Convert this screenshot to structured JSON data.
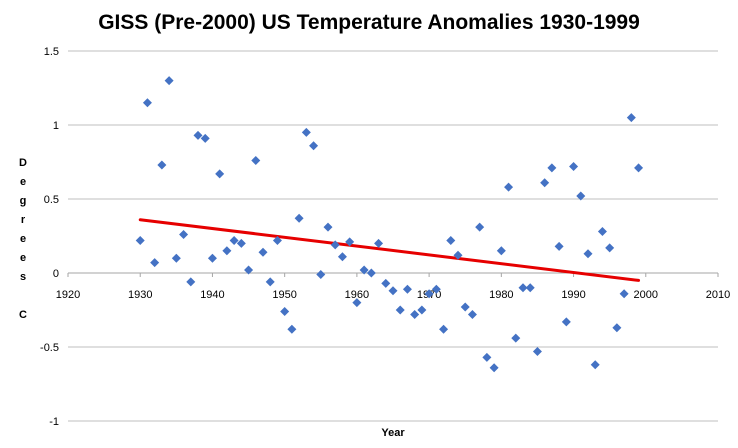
{
  "chart_data": {
    "type": "scatter",
    "title": "GISS (Pre-2000) US Temperature Anomalies 1930-1999",
    "xlabel": "Year",
    "ylabel": "Degrees C",
    "ylabel_letters": [
      "D",
      "e",
      "g",
      "r",
      "e",
      "e",
      "s",
      "",
      "C"
    ],
    "xlim": [
      1920,
      2010
    ],
    "ylim": [
      -1,
      1.5
    ],
    "xticks": [
      "1920",
      "1930",
      "1940",
      "1950",
      "1960",
      "1970",
      "1980",
      "1990",
      "2000",
      "2010"
    ],
    "yticks": [
      "1.5",
      "1",
      "0.5",
      "0",
      "-0.5",
      "-1"
    ],
    "grid": "horizontal",
    "marker_color": "#4472C4",
    "trend_color": "#E60000",
    "trendline": {
      "x": [
        1930,
        1999
      ],
      "y": [
        0.36,
        -0.05
      ]
    },
    "series": [
      {
        "x": [
          1930,
          1931,
          1932,
          1933,
          1934,
          1935,
          1936,
          1937,
          1938,
          1939,
          1940,
          1941,
          1942,
          1943,
          1944,
          1945,
          1946,
          1947,
          1948,
          1949,
          1950,
          1951,
          1952,
          1953,
          1954,
          1955,
          1956,
          1957,
          1958,
          1959,
          1960,
          1961,
          1962,
          1963,
          1964,
          1965,
          1966,
          1967,
          1968,
          1969,
          1970,
          1971,
          1972,
          1973,
          1974,
          1975,
          1976,
          1977,
          1978,
          1979,
          1980,
          1981,
          1982,
          1983,
          1984,
          1985,
          1986,
          1987,
          1988,
          1989,
          1990,
          1991,
          1992,
          1993,
          1994,
          1995,
          1996,
          1997,
          1998,
          1999
        ],
        "y": [
          0.22,
          1.15,
          0.07,
          0.73,
          1.3,
          0.1,
          0.26,
          -0.06,
          0.93,
          0.91,
          0.1,
          0.67,
          0.15,
          0.22,
          0.2,
          0.02,
          0.76,
          0.14,
          -0.06,
          0.22,
          -0.26,
          -0.38,
          0.37,
          0.95,
          0.86,
          -0.01,
          0.31,
          0.19,
          0.11,
          0.21,
          -0.2,
          0.02,
          0.0,
          0.2,
          -0.07,
          -0.12,
          -0.25,
          -0.11,
          -0.28,
          -0.25,
          -0.14,
          -0.11,
          -0.38,
          0.22,
          0.12,
          -0.23,
          -0.28,
          0.31,
          -0.57,
          -0.64,
          0.15,
          0.58,
          -0.44,
          -0.1,
          -0.1,
          -0.53,
          0.61,
          0.71,
          0.18,
          -0.33,
          0.72,
          0.52,
          0.13,
          -0.62,
          0.28,
          0.17,
          -0.37,
          -0.14,
          1.05,
          0.71
        ]
      }
    ]
  }
}
